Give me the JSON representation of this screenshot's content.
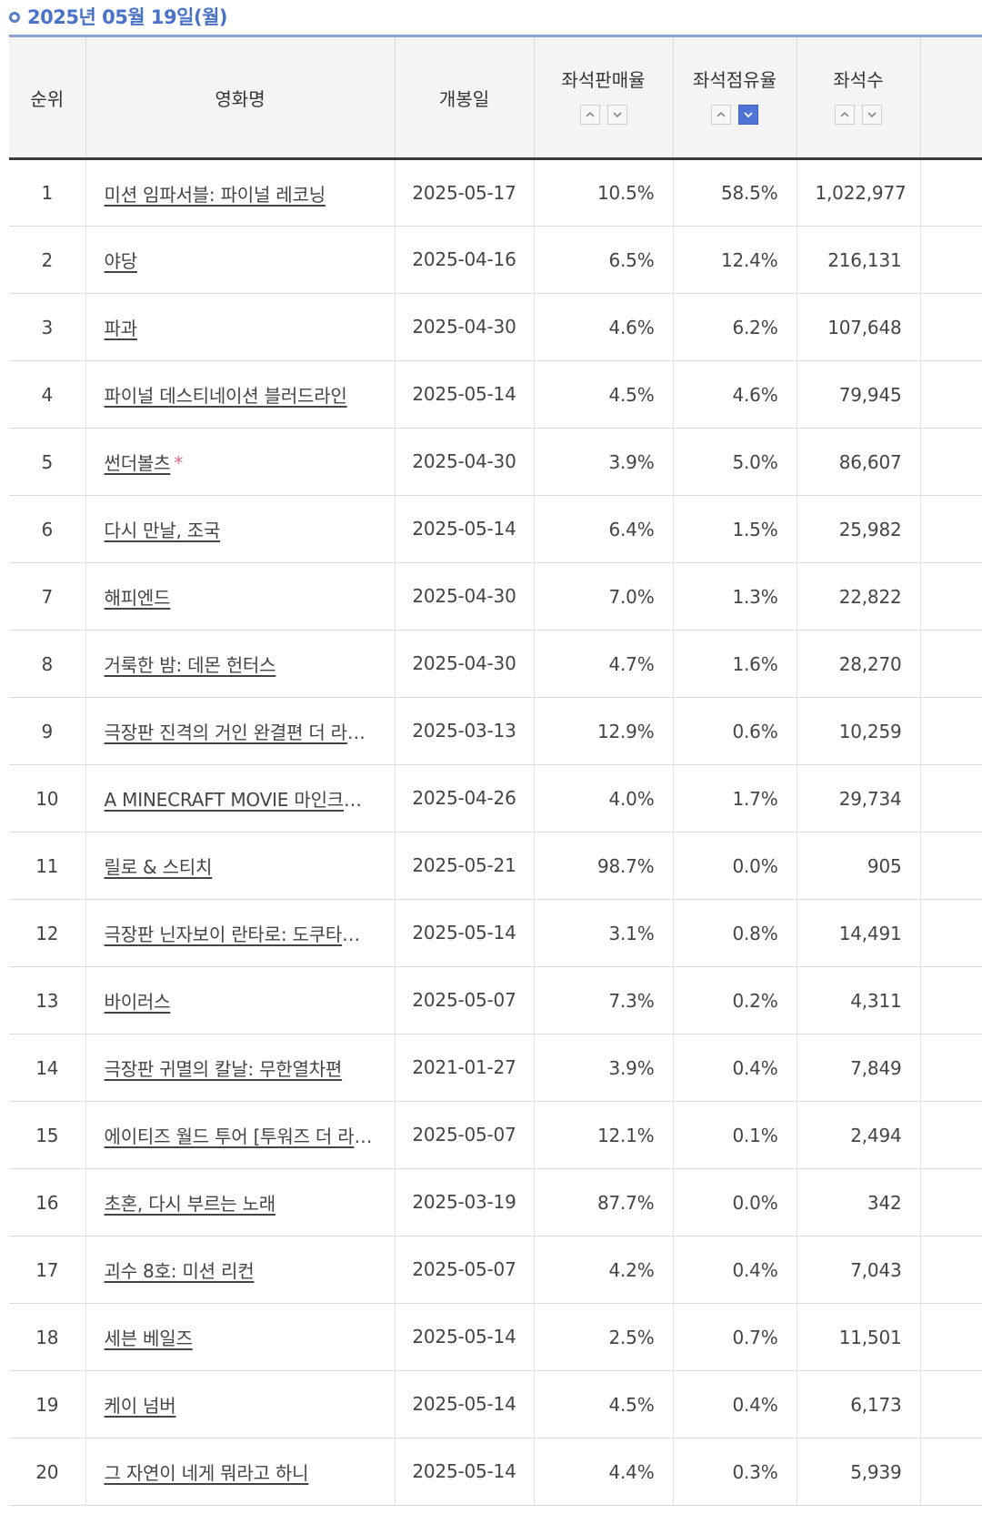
{
  "header": {
    "date": "2025년 05월 19일(월)"
  },
  "table": {
    "columns": {
      "rank": "순위",
      "title": "영화명",
      "release": "개봉일",
      "sales_rate": "좌석판매율",
      "share_rate": "좌석점유율",
      "seats": "좌석수"
    },
    "sort_active": "share_rate-desc",
    "rows": [
      {
        "rank": "1",
        "title": "미션 임파서블: 파이널 레코닝",
        "mark": "",
        "release": "2025-05-17",
        "sales": "10.5%",
        "share": "58.5%",
        "seats": "1,022,977"
      },
      {
        "rank": "2",
        "title": "야당",
        "mark": "",
        "release": "2025-04-16",
        "sales": "6.5%",
        "share": "12.4%",
        "seats": "216,131"
      },
      {
        "rank": "3",
        "title": "파과",
        "mark": "",
        "release": "2025-04-30",
        "sales": "4.6%",
        "share": "6.2%",
        "seats": "107,648"
      },
      {
        "rank": "4",
        "title": "파이널 데스티네이션 블러드라인",
        "mark": "",
        "release": "2025-05-14",
        "sales": "4.5%",
        "share": "4.6%",
        "seats": "79,945"
      },
      {
        "rank": "5",
        "title": "썬더볼츠",
        "mark": "*",
        "release": "2025-04-30",
        "sales": "3.9%",
        "share": "5.0%",
        "seats": "86,607"
      },
      {
        "rank": "6",
        "title": "다시 만날, 조국",
        "mark": "",
        "release": "2025-05-14",
        "sales": "6.4%",
        "share": "1.5%",
        "seats": "25,982"
      },
      {
        "rank": "7",
        "title": "해피엔드",
        "mark": "",
        "release": "2025-04-30",
        "sales": "7.0%",
        "share": "1.3%",
        "seats": "22,822"
      },
      {
        "rank": "8",
        "title": "거룩한 밤: 데몬 헌터스",
        "mark": "",
        "release": "2025-04-30",
        "sales": "4.7%",
        "share": "1.6%",
        "seats": "28,270"
      },
      {
        "rank": "9",
        "title": "극장판 진격의 거인 완결편 더 라스트 어택",
        "mark": "",
        "release": "2025-03-13",
        "sales": "12.9%",
        "share": "0.6%",
        "seats": "10,259"
      },
      {
        "rank": "10",
        "title": "A MINECRAFT MOVIE 마인크래프트 무비",
        "mark": "",
        "release": "2025-04-26",
        "sales": "4.0%",
        "share": "1.7%",
        "seats": "29,734"
      },
      {
        "rank": "11",
        "title": "릴로 & 스티치",
        "mark": "",
        "release": "2025-05-21",
        "sales": "98.7%",
        "share": "0.0%",
        "seats": "905"
      },
      {
        "rank": "12",
        "title": "극장판 닌자보이 란타로: 도쿠타케 닌자대의 최강 군사",
        "mark": "",
        "release": "2025-05-14",
        "sales": "3.1%",
        "share": "0.8%",
        "seats": "14,491"
      },
      {
        "rank": "13",
        "title": "바이러스",
        "mark": "",
        "release": "2025-05-07",
        "sales": "7.3%",
        "share": "0.2%",
        "seats": "4,311"
      },
      {
        "rank": "14",
        "title": "극장판 귀멸의 칼날: 무한열차편",
        "mark": "",
        "release": "2021-01-27",
        "sales": "3.9%",
        "share": "0.4%",
        "seats": "7,849"
      },
      {
        "rank": "15",
        "title": "에이티즈 월드 투어 [투워즈 더 라이트: 윌 투 파워] 인 시네마",
        "mark": "",
        "release": "2025-05-07",
        "sales": "12.1%",
        "share": "0.1%",
        "seats": "2,494"
      },
      {
        "rank": "16",
        "title": "초혼, 다시 부르는 노래",
        "mark": "",
        "release": "2025-03-19",
        "sales": "87.7%",
        "share": "0.0%",
        "seats": "342"
      },
      {
        "rank": "17",
        "title": "괴수 8호: 미션 리컨",
        "mark": "",
        "release": "2025-05-07",
        "sales": "4.2%",
        "share": "0.4%",
        "seats": "7,043"
      },
      {
        "rank": "18",
        "title": "세븐 베일즈",
        "mark": "",
        "release": "2025-05-14",
        "sales": "2.5%",
        "share": "0.7%",
        "seats": "11,501"
      },
      {
        "rank": "19",
        "title": "케이 넘버",
        "mark": "",
        "release": "2025-05-14",
        "sales": "4.5%",
        "share": "0.4%",
        "seats": "6,173"
      },
      {
        "rank": "20",
        "title": "그 자연이 네게 뭐라고 하니",
        "mark": "",
        "release": "2025-05-14",
        "sales": "4.4%",
        "share": "0.3%",
        "seats": "5,939"
      }
    ]
  }
}
